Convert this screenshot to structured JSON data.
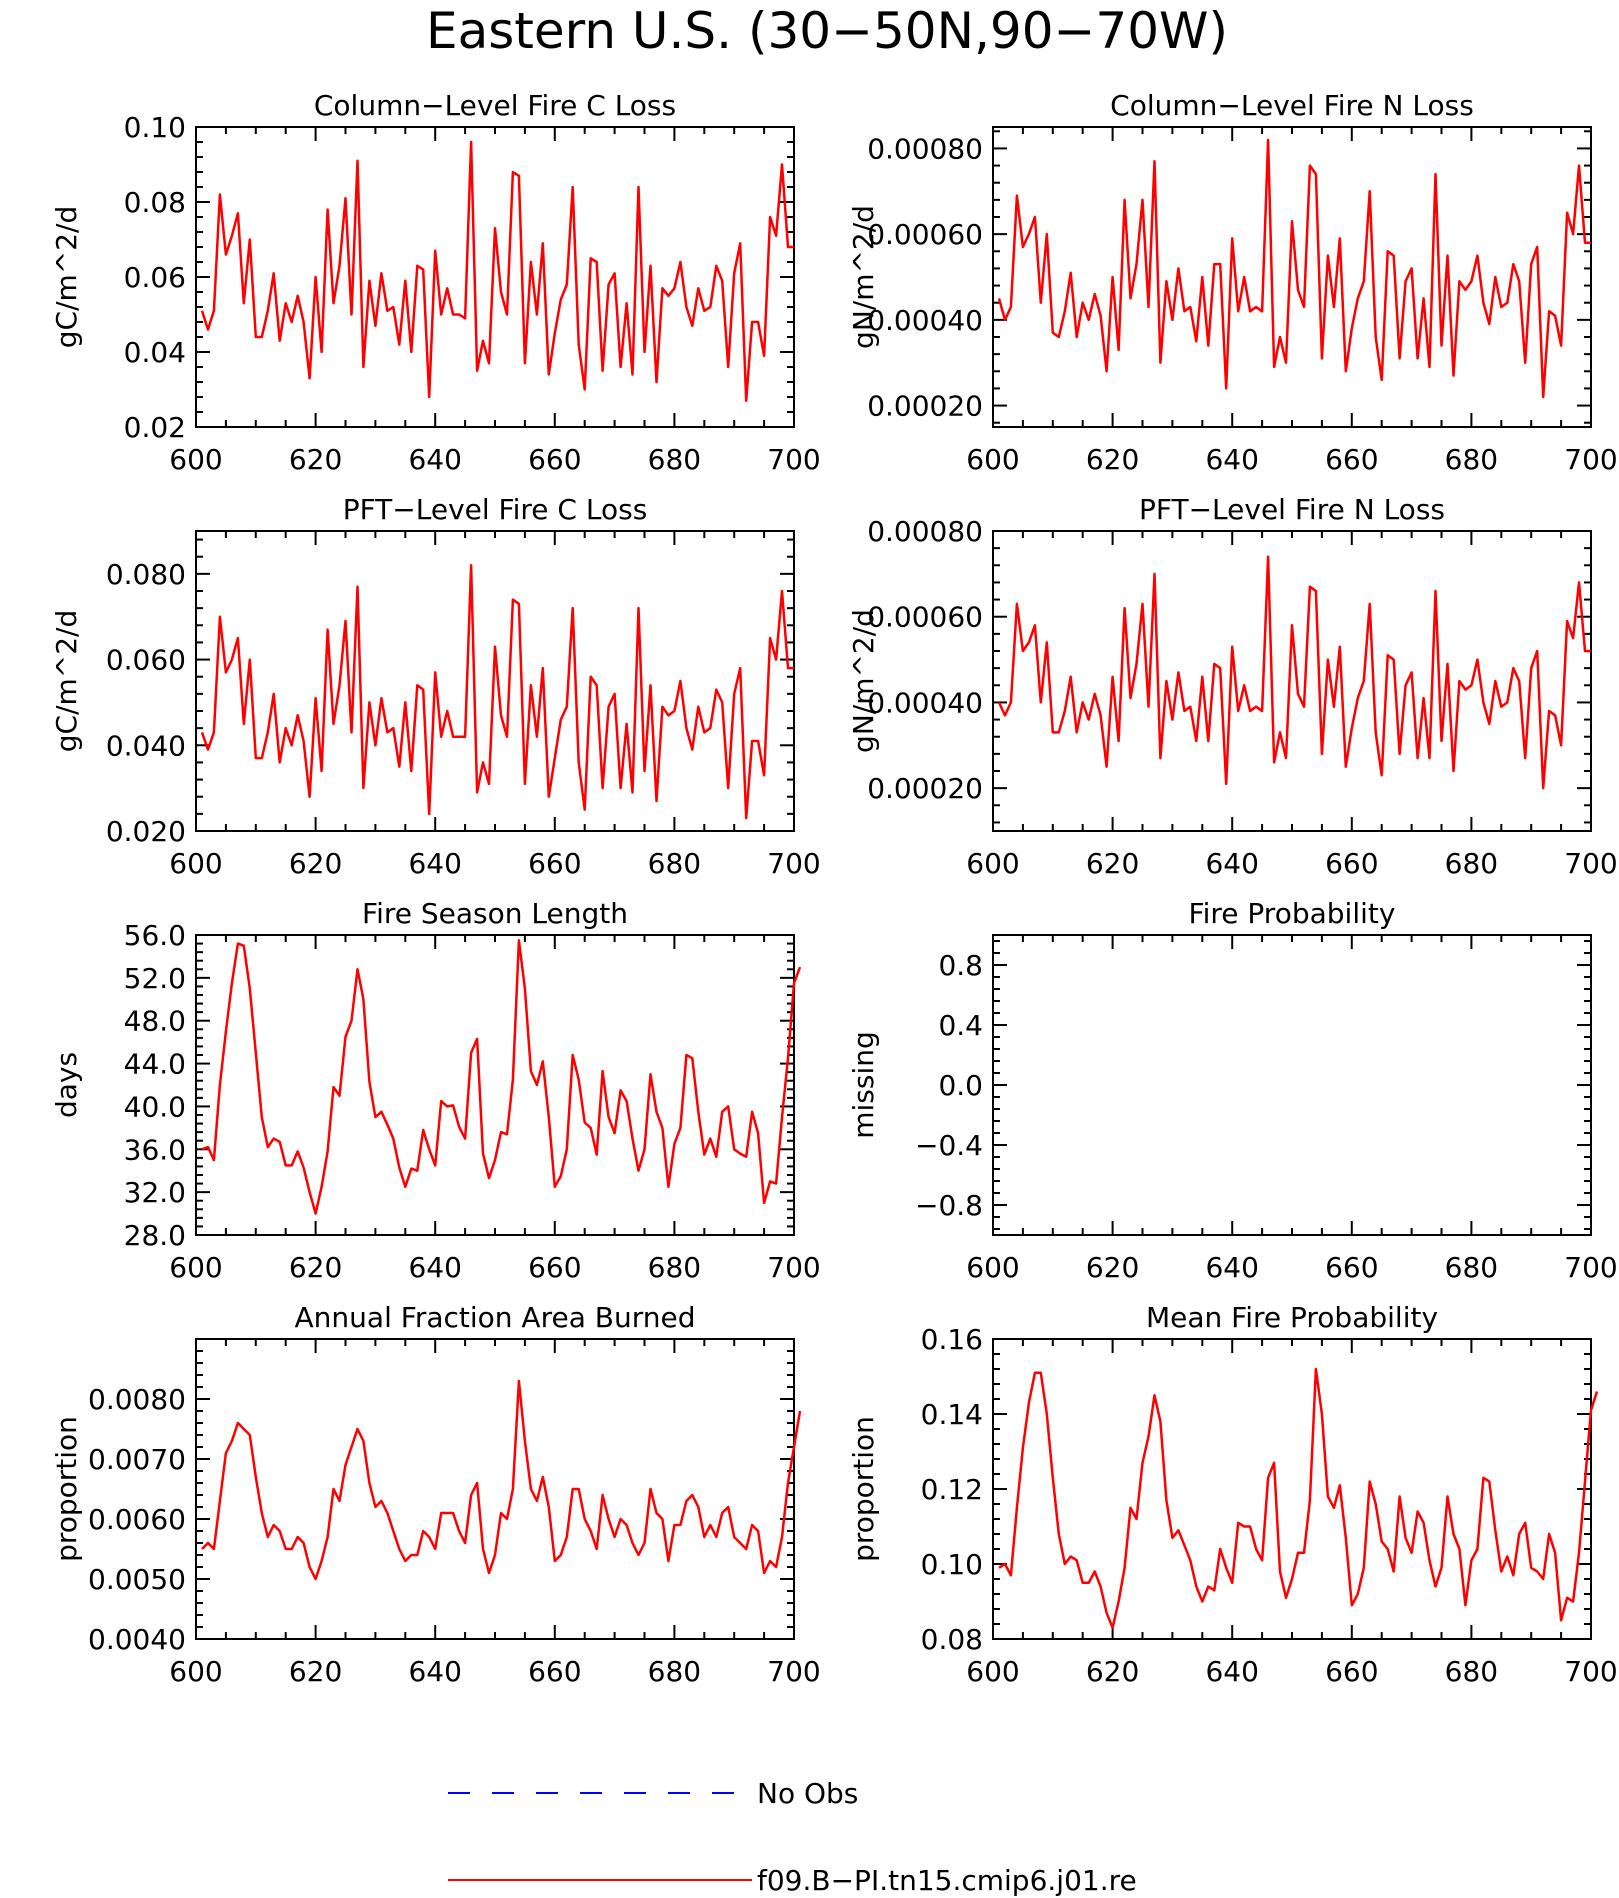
{
  "figure_title": "Eastern U.S. (30−50N,90−70W)",
  "colors": {
    "model_line": "#ff0000",
    "obs_line": "#0000ff",
    "axis": "#000000"
  },
  "legend": [
    {
      "label": "No Obs",
      "color": "#0000ff",
      "style": "dashed"
    },
    {
      "label": "f09.B−PI.tn15.cmip6.j01.re",
      "color": "#ff0000",
      "style": "solid"
    }
  ],
  "chart_data": [
    {
      "type": "line",
      "title": "Column−Level Fire C Loss",
      "ylabel": "gC/m^2/d",
      "xlim": [
        600,
        700
      ],
      "ylim": [
        0.02,
        0.1
      ],
      "xticks": [
        "600",
        "620",
        "640",
        "660",
        "680",
        "700"
      ],
      "yticks": [
        "0.02",
        "0.04",
        "0.06",
        "0.08",
        "0.10"
      ],
      "x_start": 601,
      "values": [
        0.051,
        0.046,
        0.051,
        0.082,
        0.066,
        0.071,
        0.077,
        0.053,
        0.07,
        0.044,
        0.044,
        0.051,
        0.061,
        0.043,
        0.053,
        0.048,
        0.055,
        0.048,
        0.033,
        0.06,
        0.04,
        0.078,
        0.053,
        0.063,
        0.081,
        0.05,
        0.091,
        0.036,
        0.059,
        0.047,
        0.061,
        0.051,
        0.052,
        0.042,
        0.059,
        0.04,
        0.063,
        0.062,
        0.028,
        0.067,
        0.05,
        0.057,
        0.05,
        0.05,
        0.049,
        0.096,
        0.035,
        0.043,
        0.037,
        0.073,
        0.056,
        0.05,
        0.088,
        0.087,
        0.037,
        0.064,
        0.05,
        0.069,
        0.034,
        0.045,
        0.054,
        0.058,
        0.084,
        0.042,
        0.03,
        0.065,
        0.064,
        0.035,
        0.058,
        0.061,
        0.036,
        0.053,
        0.034,
        0.084,
        0.04,
        0.063,
        0.032,
        0.057,
        0.055,
        0.057,
        0.064,
        0.052,
        0.047,
        0.057,
        0.051,
        0.052,
        0.063,
        0.059,
        0.036,
        0.061,
        0.069,
        0.027,
        0.048,
        0.048,
        0.039,
        0.076,
        0.071,
        0.09,
        0.068,
        0.068
      ]
    },
    {
      "type": "line",
      "title": "Column−Level Fire N Loss",
      "ylabel": "gN/m^2/d",
      "xlim": [
        600,
        700
      ],
      "ylim": [
        0.00015,
        0.00085
      ],
      "xticks": [
        "600",
        "620",
        "640",
        "660",
        "680",
        "700"
      ],
      "yticks": [
        "0.00020",
        "0.00040",
        "0.00060",
        "0.00080"
      ],
      "x_start": 601,
      "values": [
        0.00045,
        0.0004,
        0.00043,
        0.00069,
        0.00057,
        0.0006,
        0.00064,
        0.00044,
        0.0006,
        0.00037,
        0.00036,
        0.00042,
        0.00051,
        0.00036,
        0.00044,
        0.0004,
        0.00046,
        0.00041,
        0.00028,
        0.0005,
        0.00033,
        0.00068,
        0.00045,
        0.00053,
        0.00068,
        0.00043,
        0.00077,
        0.0003,
        0.00049,
        0.0004,
        0.00052,
        0.00042,
        0.00043,
        0.00035,
        0.0005,
        0.00034,
        0.00053,
        0.00053,
        0.00024,
        0.00059,
        0.00042,
        0.0005,
        0.00042,
        0.00043,
        0.00042,
        0.00082,
        0.00029,
        0.00036,
        0.0003,
        0.00063,
        0.00047,
        0.00043,
        0.00076,
        0.00074,
        0.00031,
        0.00055,
        0.00043,
        0.00059,
        0.00028,
        0.00038,
        0.00045,
        0.00049,
        0.0007,
        0.00036,
        0.00026,
        0.00056,
        0.00055,
        0.00031,
        0.00049,
        0.00052,
        0.00031,
        0.00045,
        0.00029,
        0.00074,
        0.00034,
        0.00055,
        0.00027,
        0.00049,
        0.00047,
        0.00049,
        0.00055,
        0.00044,
        0.00039,
        0.0005,
        0.00043,
        0.00044,
        0.00053,
        0.00049,
        0.0003,
        0.00053,
        0.00057,
        0.00022,
        0.00042,
        0.00041,
        0.00034,
        0.00065,
        0.0006,
        0.00076,
        0.00058,
        0.00058
      ]
    },
    {
      "type": "line",
      "title": "PFT−Level Fire C Loss",
      "ylabel": "gC/m^2/d",
      "xlim": [
        600,
        700
      ],
      "ylim": [
        0.02,
        0.09
      ],
      "xticks": [
        "600",
        "620",
        "640",
        "660",
        "680",
        "700"
      ],
      "yticks": [
        "0.020",
        "0.040",
        "0.060",
        "0.080"
      ],
      "x_start": 601,
      "values": [
        0.043,
        0.039,
        0.043,
        0.07,
        0.057,
        0.06,
        0.065,
        0.045,
        0.06,
        0.037,
        0.037,
        0.043,
        0.052,
        0.036,
        0.044,
        0.04,
        0.047,
        0.041,
        0.028,
        0.051,
        0.034,
        0.067,
        0.045,
        0.054,
        0.069,
        0.043,
        0.077,
        0.03,
        0.05,
        0.04,
        0.051,
        0.043,
        0.044,
        0.035,
        0.05,
        0.034,
        0.054,
        0.053,
        0.024,
        0.057,
        0.042,
        0.048,
        0.042,
        0.042,
        0.042,
        0.082,
        0.029,
        0.036,
        0.031,
        0.063,
        0.047,
        0.042,
        0.074,
        0.073,
        0.031,
        0.054,
        0.042,
        0.058,
        0.028,
        0.037,
        0.046,
        0.049,
        0.072,
        0.036,
        0.025,
        0.056,
        0.054,
        0.03,
        0.049,
        0.052,
        0.03,
        0.045,
        0.029,
        0.072,
        0.034,
        0.054,
        0.027,
        0.049,
        0.047,
        0.048,
        0.055,
        0.044,
        0.039,
        0.049,
        0.043,
        0.044,
        0.053,
        0.05,
        0.03,
        0.052,
        0.058,
        0.023,
        0.041,
        0.041,
        0.033,
        0.065,
        0.06,
        0.076,
        0.058,
        0.058
      ]
    },
    {
      "type": "line",
      "title": "PFT−Level Fire N Loss",
      "ylabel": "gN/m^2/d",
      "xlim": [
        600,
        700
      ],
      "ylim": [
        0.0001,
        0.0008
      ],
      "xticks": [
        "600",
        "620",
        "640",
        "660",
        "680",
        "700"
      ],
      "yticks": [
        "0.00020",
        "0.00040",
        "0.00060",
        "0.00080"
      ],
      "x_start": 601,
      "values": [
        0.0004,
        0.00037,
        0.0004,
        0.00063,
        0.00052,
        0.00054,
        0.00058,
        0.0004,
        0.00054,
        0.00033,
        0.00033,
        0.00038,
        0.00046,
        0.00033,
        0.0004,
        0.00036,
        0.00042,
        0.00037,
        0.00025,
        0.00046,
        0.00031,
        0.00062,
        0.00041,
        0.00049,
        0.00063,
        0.00039,
        0.0007,
        0.00027,
        0.00045,
        0.00036,
        0.00047,
        0.00038,
        0.00039,
        0.00031,
        0.00046,
        0.00031,
        0.00049,
        0.00048,
        0.00021,
        0.00053,
        0.00038,
        0.00044,
        0.00038,
        0.00039,
        0.00038,
        0.00074,
        0.00026,
        0.00033,
        0.00027,
        0.00058,
        0.00042,
        0.00039,
        0.00067,
        0.00066,
        0.00028,
        0.0005,
        0.00039,
        0.00053,
        0.00025,
        0.00034,
        0.00041,
        0.00045,
        0.00063,
        0.00033,
        0.00023,
        0.00051,
        0.0005,
        0.00028,
        0.00044,
        0.00047,
        0.00027,
        0.00041,
        0.00027,
        0.00066,
        0.00031,
        0.00049,
        0.00024,
        0.00045,
        0.00043,
        0.00044,
        0.0005,
        0.0004,
        0.00035,
        0.00045,
        0.00039,
        0.0004,
        0.00048,
        0.00045,
        0.00027,
        0.00048,
        0.00052,
        0.0002,
        0.00038,
        0.00037,
        0.0003,
        0.00059,
        0.00055,
        0.00068,
        0.00052,
        0.00052
      ]
    },
    {
      "type": "line",
      "title": "Fire Season Length",
      "ylabel": "days",
      "xlim": [
        600,
        700
      ],
      "ylim": [
        28.0,
        56.0
      ],
      "xticks": [
        "600",
        "620",
        "640",
        "660",
        "680",
        "700"
      ],
      "yticks": [
        "28.0",
        "32.0",
        "36.0",
        "40.0",
        "44.0",
        "48.0",
        "52.0",
        "56.0"
      ],
      "x_start": 601,
      "values": [
        36.0,
        36.2,
        35.0,
        42.0,
        47.0,
        51.5,
        55.2,
        55.0,
        51.0,
        45.0,
        39.0,
        36.2,
        37.0,
        36.7,
        34.5,
        34.5,
        35.8,
        34.3,
        32.0,
        30.0,
        32.5,
        35.8,
        41.8,
        41.0,
        46.5,
        48.0,
        52.8,
        50.0,
        42.3,
        39.0,
        39.5,
        38.3,
        37.0,
        34.3,
        32.5,
        34.2,
        34.0,
        37.8,
        36.0,
        34.5,
        40.5,
        40.0,
        40.1,
        38.1,
        37.0,
        45.0,
        46.3,
        35.6,
        33.3,
        35.0,
        37.6,
        37.4,
        42.5,
        55.5,
        51.0,
        43.3,
        42.0,
        44.2,
        39.0,
        32.5,
        33.5,
        36.0,
        44.8,
        42.5,
        38.5,
        38.0,
        35.5,
        43.3,
        39.0,
        37.5,
        41.5,
        40.5,
        37.0,
        34.0,
        36.0,
        43.0,
        39.5,
        38.0,
        32.5,
        36.5,
        38.0,
        44.8,
        44.5,
        39.5,
        35.5,
        37.0,
        35.3,
        39.5,
        40.0,
        36.0,
        35.6,
        35.3,
        39.5,
        37.5,
        31.0,
        33.0,
        32.8,
        39.0,
        44.5,
        51.5,
        53.0
      ]
    },
    {
      "type": "line",
      "title": "Fire Probability",
      "ylabel": "missing",
      "xlim": [
        600,
        700
      ],
      "ylim": [
        -1.0,
        1.0
      ],
      "xticks": [
        "600",
        "620",
        "640",
        "660",
        "680",
        "700"
      ],
      "yticks": [
        "−0.8",
        "−0.4",
        "0.0",
        "0.4",
        "0.8"
      ],
      "x_start": 601,
      "values": []
    },
    {
      "type": "line",
      "title": "Annual Fraction Area Burned",
      "ylabel": "proportion",
      "xlim": [
        600,
        700
      ],
      "ylim": [
        0.004,
        0.009
      ],
      "xticks": [
        "600",
        "620",
        "640",
        "660",
        "680",
        "700"
      ],
      "yticks": [
        "0.0040",
        "0.0050",
        "0.0060",
        "0.0070",
        "0.0080"
      ],
      "x_start": 601,
      "values": [
        0.0055,
        0.0056,
        0.0055,
        0.0063,
        0.0071,
        0.0073,
        0.0076,
        0.0075,
        0.0074,
        0.0067,
        0.0061,
        0.0057,
        0.0059,
        0.0058,
        0.0055,
        0.0055,
        0.0057,
        0.0056,
        0.0052,
        0.005,
        0.0053,
        0.0057,
        0.0065,
        0.0063,
        0.0069,
        0.0072,
        0.0075,
        0.0073,
        0.0066,
        0.0062,
        0.0063,
        0.0061,
        0.0058,
        0.0055,
        0.0053,
        0.0054,
        0.0054,
        0.0058,
        0.0057,
        0.0055,
        0.0061,
        0.0061,
        0.0061,
        0.0058,
        0.0056,
        0.0064,
        0.0066,
        0.0055,
        0.0051,
        0.0054,
        0.0061,
        0.006,
        0.0065,
        0.0083,
        0.0073,
        0.0065,
        0.0063,
        0.0067,
        0.0062,
        0.0053,
        0.0054,
        0.0057,
        0.0065,
        0.0065,
        0.006,
        0.0058,
        0.0055,
        0.0064,
        0.006,
        0.0057,
        0.006,
        0.0059,
        0.0056,
        0.0054,
        0.0056,
        0.0065,
        0.0061,
        0.006,
        0.0053,
        0.0059,
        0.0059,
        0.0063,
        0.0064,
        0.0062,
        0.0057,
        0.0059,
        0.0057,
        0.0061,
        0.0062,
        0.0057,
        0.0056,
        0.0055,
        0.0059,
        0.0058,
        0.0051,
        0.0053,
        0.0052,
        0.0057,
        0.0066,
        0.0072,
        0.0078
      ]
    },
    {
      "type": "line",
      "title": "Mean Fire Probability",
      "ylabel": "proportion",
      "xlim": [
        600,
        700
      ],
      "ylim": [
        0.08,
        0.16
      ],
      "xticks": [
        "600",
        "620",
        "640",
        "660",
        "680",
        "700"
      ],
      "yticks": [
        "0.08",
        "0.10",
        "0.12",
        "0.14",
        "0.16"
      ],
      "x_start": 601,
      "values": [
        0.099,
        0.1,
        0.097,
        0.115,
        0.131,
        0.143,
        0.151,
        0.151,
        0.14,
        0.123,
        0.108,
        0.1,
        0.102,
        0.101,
        0.095,
        0.095,
        0.098,
        0.094,
        0.087,
        0.083,
        0.09,
        0.099,
        0.115,
        0.112,
        0.127,
        0.134,
        0.145,
        0.138,
        0.117,
        0.107,
        0.109,
        0.105,
        0.101,
        0.094,
        0.09,
        0.094,
        0.093,
        0.104,
        0.099,
        0.095,
        0.111,
        0.11,
        0.11,
        0.104,
        0.101,
        0.123,
        0.127,
        0.098,
        0.091,
        0.096,
        0.103,
        0.103,
        0.117,
        0.152,
        0.14,
        0.118,
        0.115,
        0.121,
        0.107,
        0.089,
        0.092,
        0.099,
        0.122,
        0.116,
        0.106,
        0.104,
        0.098,
        0.118,
        0.107,
        0.103,
        0.114,
        0.111,
        0.101,
        0.094,
        0.099,
        0.118,
        0.108,
        0.104,
        0.089,
        0.101,
        0.104,
        0.123,
        0.122,
        0.109,
        0.098,
        0.102,
        0.097,
        0.108,
        0.111,
        0.099,
        0.098,
        0.096,
        0.108,
        0.103,
        0.085,
        0.091,
        0.09,
        0.103,
        0.122,
        0.141,
        0.146
      ]
    }
  ]
}
